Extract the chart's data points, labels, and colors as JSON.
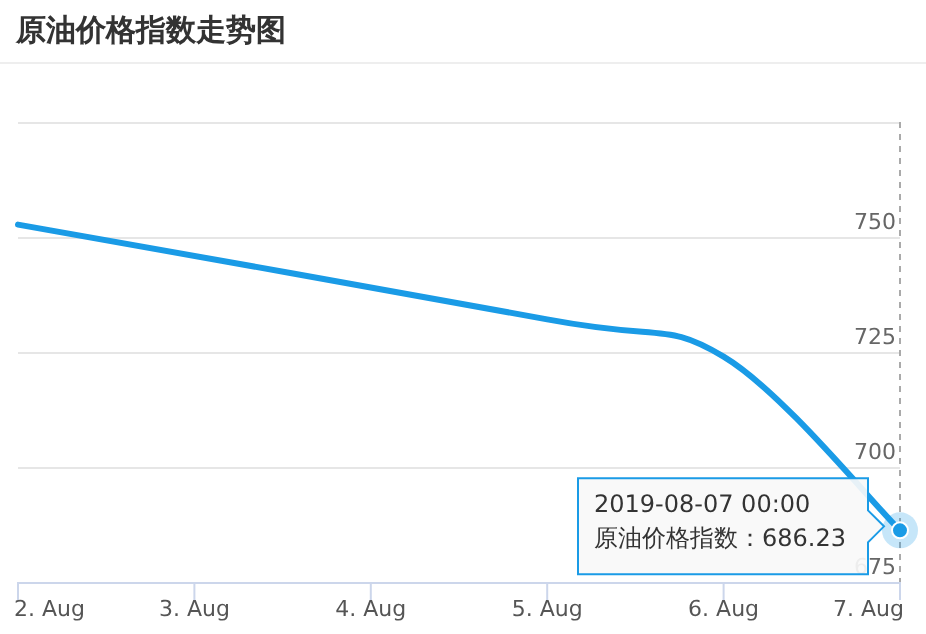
{
  "chart_data": {
    "type": "line",
    "title": "原油价格指数走势图",
    "x": [
      "2019-08-02",
      "2019-08-05",
      "2019-08-06",
      "2019-08-07"
    ],
    "series": [
      {
        "color": "#1a9be6",
        "values": [
          752.7,
          732.1,
          724.0,
          686.23
        ]
      }
    ],
    "xlim": [
      "2019-08-02",
      "2019-08-07"
    ],
    "xticks": [
      {
        "value": "2019-08-02",
        "label": "2. Aug"
      },
      {
        "value": "2019-08-03",
        "label": "3. Aug"
      },
      {
        "value": "2019-08-04",
        "label": "4. Aug"
      },
      {
        "value": "2019-08-05",
        "label": "5. Aug"
      },
      {
        "value": "2019-08-06",
        "label": "6. Aug"
      },
      {
        "value": "2019-08-07",
        "label": "7. Aug"
      }
    ],
    "ylim": [
      675,
      775
    ],
    "yticks": [
      675,
      700,
      725,
      750,
      {
        "value": 775,
        "label": null
      }
    ],
    "grid": "y",
    "annotations": [
      {
        "text": "2019-08-07 00:00\n原油价格指数：686.23",
        "x": "2019-08-07",
        "y": 686.23
      }
    ]
  }
}
